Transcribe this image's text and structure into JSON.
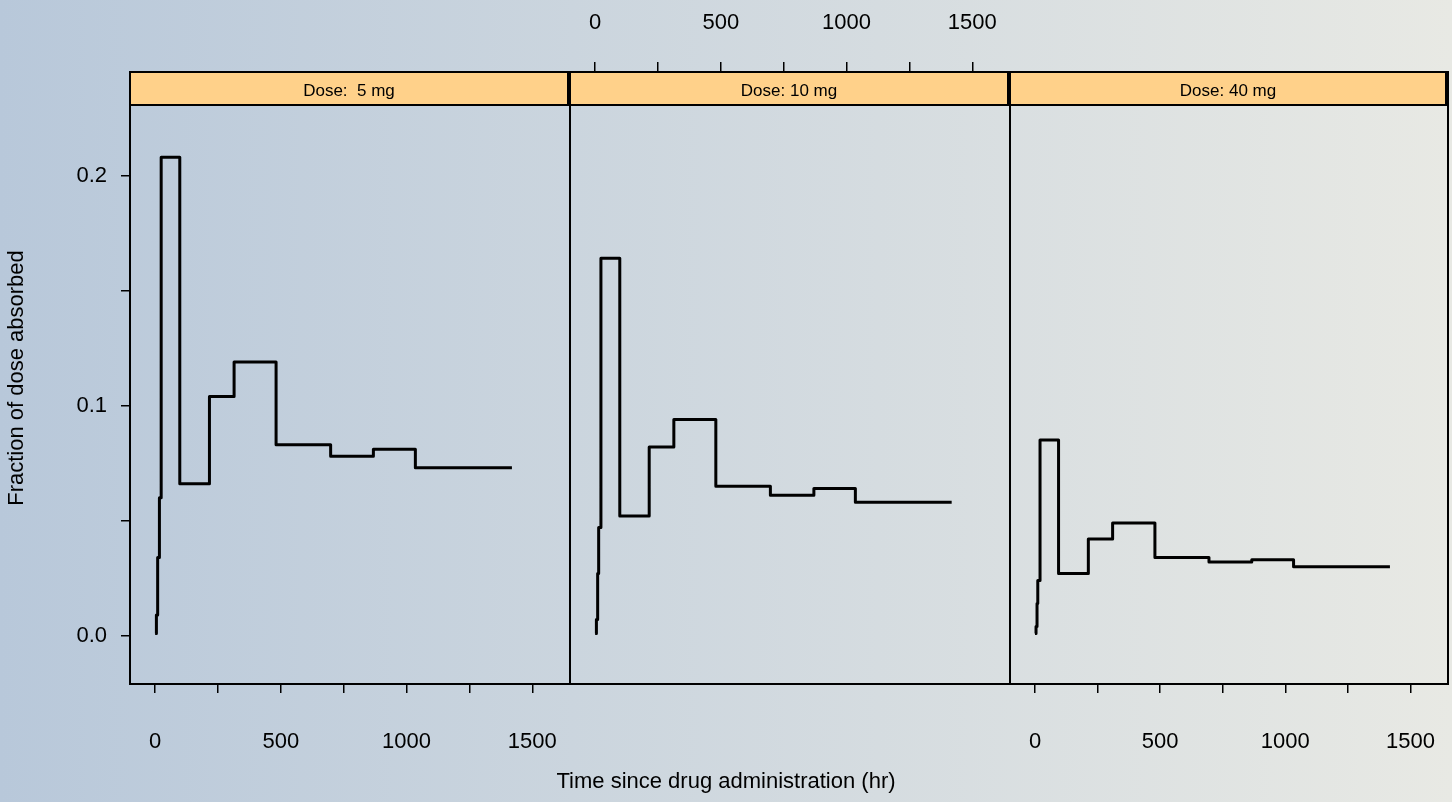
{
  "chart_data": [
    {
      "type": "step",
      "title": "Dose:  5 mg",
      "ylabel": "Fraction of dose absorbed",
      "xlim": [
        -100,
        1650
      ],
      "xticks": [
        0,
        {
          "value": 250,
          "label": null
        },
        500,
        {
          "value": 750,
          "label": null
        },
        1000,
        {
          "value": 1250,
          "label": null
        },
        1500
      ],
      "ylim": [
        -0.021,
        0.245
      ],
      "yticks": [
        {
          "value": 0,
          "label": "0.0"
        },
        {
          "value": 0.05,
          "label": null
        },
        0.1,
        {
          "value": 0.15,
          "label": null
        },
        0.2
      ],
      "grid": false,
      "legend": false,
      "series": [
        {
          "color": "#000000",
          "x": [
            0,
            5,
            10,
            17,
            24,
            98,
            216,
            314,
            481,
            698,
            868,
            1035,
            1419
          ],
          "values": [
            0.001,
            0.009,
            0.034,
            0.06,
            0.208,
            0.066,
            0.104,
            0.119,
            0.083,
            0.078,
            0.081,
            0.073,
            0.073
          ]
        }
      ]
    },
    {
      "type": "step",
      "title": "Dose: 10 mg",
      "xlabel": "Time since drug administration (hr)",
      "xlim": [
        -100,
        1650
      ],
      "xticks": [
        0,
        {
          "value": 250,
          "label": null
        },
        500,
        {
          "value": 750,
          "label": null
        },
        1000,
        {
          "value": 1250,
          "label": null
        },
        1500
      ],
      "ylim": [
        -0.021,
        0.245
      ],
      "tick_labels": "x",
      "grid": false,
      "legend": false,
      "series": [
        {
          "color": "#000000",
          "x": [
            0,
            5,
            10,
            14,
            23,
            98,
            215,
            313,
            480,
            697,
            870,
            1035,
            1418
          ],
          "values": [
            0.001,
            0.007,
            0.027,
            0.047,
            0.164,
            0.052,
            0.082,
            0.094,
            0.065,
            0.061,
            0.064,
            0.058,
            0.058
          ]
        }
      ]
    },
    {
      "type": "step",
      "title": "Dose: 40 mg",
      "xlim": [
        -100,
        1650
      ],
      "xticks": [
        0,
        {
          "value": 250,
          "label": null
        },
        500,
        {
          "value": 750,
          "label": null
        },
        1000,
        {
          "value": 1250,
          "label": null
        },
        1500
      ],
      "ylim": [
        -0.021,
        0.245
      ],
      "tick_labels": "x",
      "grid": false,
      "legend": false,
      "series": [
        {
          "color": "#000000",
          "x": [
            0,
            4,
            8,
            11,
            20,
            94,
            213,
            310,
            479,
            695,
            866,
            1033,
            1418
          ],
          "values": [
            0.001,
            0.004,
            0.014,
            0.024,
            0.085,
            0.027,
            0.042,
            0.049,
            0.034,
            0.032,
            0.033,
            0.03,
            0.03
          ]
        }
      ]
    }
  ]
}
